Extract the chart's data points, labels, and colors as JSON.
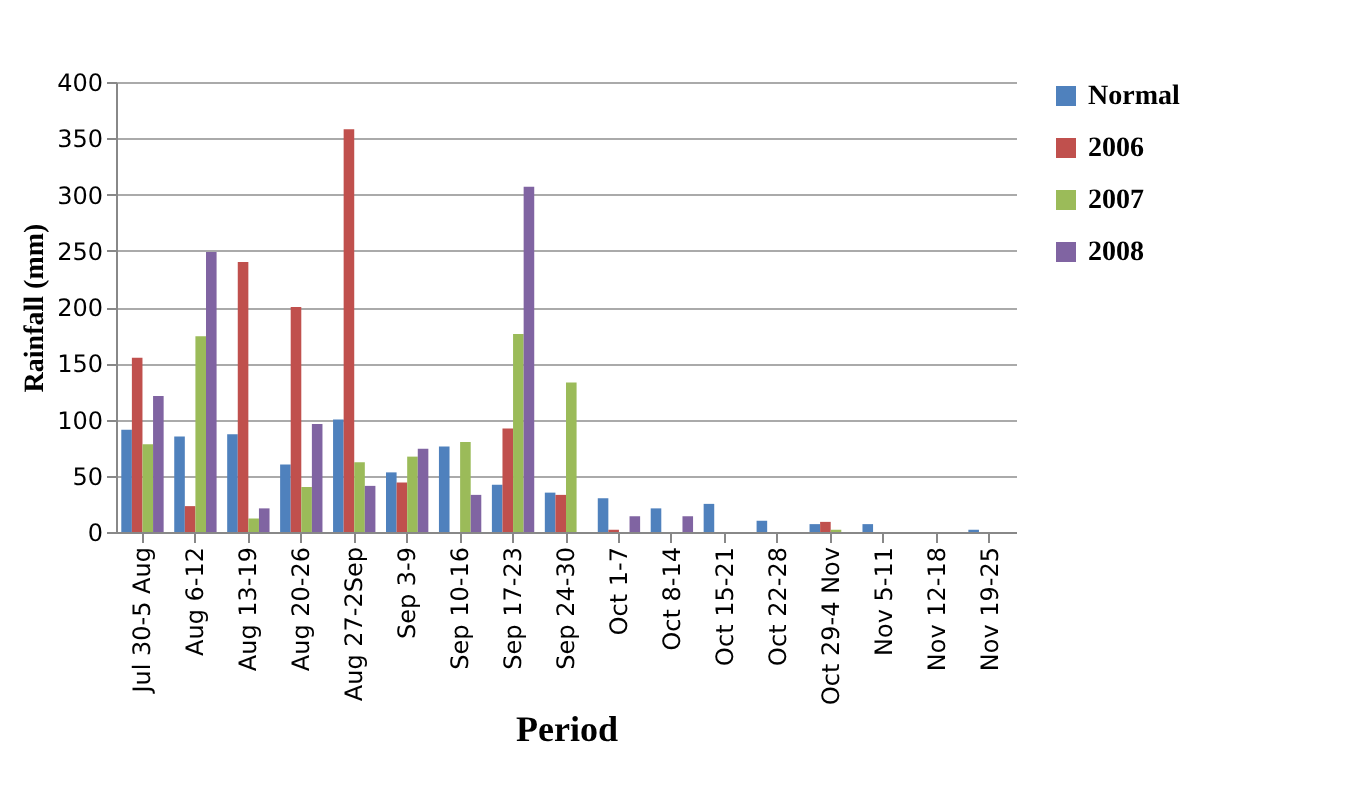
{
  "chart_data": {
    "type": "bar",
    "xlabel": "Period",
    "ylabel": "Rainfall (mm)",
    "categories": [
      "Jul 30-5 Aug",
      "Aug 6-12",
      "Aug 13-19",
      "Aug 20-26",
      "Aug 27-2Sep",
      "Sep 3-9",
      "Sep 10-16",
      "Sep 17-23",
      "Sep 24-30",
      "Oct 1-7",
      "Oct 8-14",
      "Oct 15-21",
      "Oct 22-28",
      "Oct 29-4 Nov",
      "Nov 5-11",
      "Nov 12-18",
      "Nov 19-25"
    ],
    "series": [
      {
        "name": "Normal",
        "color": "#4f81bd",
        "values": [
          91,
          85,
          87,
          60,
          100,
          53,
          76,
          42,
          35,
          30,
          21,
          25,
          10,
          7,
          7,
          0,
          2
        ]
      },
      {
        "name": "2006",
        "color": "#c0504d",
        "values": [
          155,
          23,
          240,
          200,
          358,
          44,
          0,
          92,
          33,
          2,
          0,
          0,
          0,
          9,
          0,
          0,
          0
        ]
      },
      {
        "name": "2007",
        "color": "#9bbb59",
        "values": [
          78,
          174,
          12,
          40,
          62,
          67,
          80,
          176,
          133,
          0,
          0,
          0,
          0,
          2,
          0,
          0,
          0
        ]
      },
      {
        "name": "2008",
        "color": "#8064a2",
        "values": [
          121,
          249,
          21,
          96,
          41,
          74,
          33,
          307,
          0,
          14,
          14,
          0,
          0,
          0,
          0,
          0,
          0
        ]
      }
    ],
    "ylim": [
      0,
      400
    ],
    "yticks": [
      0,
      50,
      100,
      150,
      200,
      250,
      300,
      350,
      400
    ],
    "grid": "y",
    "legend": "right"
  }
}
